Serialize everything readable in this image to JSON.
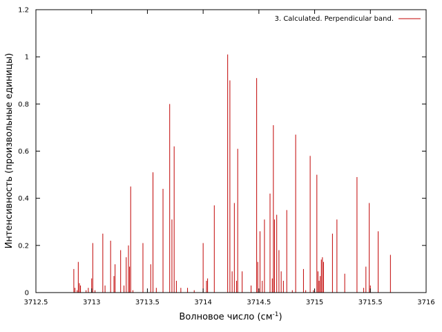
{
  "chart_data": {
    "type": "bar",
    "title": "",
    "xlabel": "Волновое число (см",
    "xlabel_sup": "-1",
    "xlabel_end": ")",
    "ylabel": "Интенсивность (произвольные единицы)",
    "xlim": [
      3712.5,
      3716
    ],
    "ylim": [
      0,
      1.2
    ],
    "x_ticks": [
      "3712.5",
      "3713",
      "3713.5",
      "3714",
      "3714.5",
      "3715",
      "3715.5",
      "3716"
    ],
    "y_ticks": [
      "0",
      "0.2",
      "0.4",
      "0.6",
      "0.8",
      "1",
      "1.2"
    ],
    "grid": false,
    "legend_position": "top-right",
    "color": "#c00000",
    "series": [
      {
        "name": "3. Calculated. Perpendicular band.",
        "points": [
          [
            3712.84,
            0.1
          ],
          [
            3712.85,
            0.02
          ],
          [
            3712.87,
            0.01
          ],
          [
            3712.88,
            0.13
          ],
          [
            3712.89,
            0.04
          ],
          [
            3712.9,
            0.03
          ],
          [
            3712.95,
            0.01
          ],
          [
            3712.97,
            0.02
          ],
          [
            3713.0,
            0.06
          ],
          [
            3713.01,
            0.21
          ],
          [
            3713.03,
            0.01
          ],
          [
            3713.1,
            0.25
          ],
          [
            3713.12,
            0.03
          ],
          [
            3713.17,
            0.22
          ],
          [
            3713.2,
            0.07
          ],
          [
            3713.21,
            0.12
          ],
          [
            3713.26,
            0.18
          ],
          [
            3713.29,
            0.03
          ],
          [
            3713.31,
            0.15
          ],
          [
            3713.33,
            0.2
          ],
          [
            3713.34,
            0.11
          ],
          [
            3713.35,
            0.45
          ],
          [
            3713.37,
            0.01
          ],
          [
            3713.46,
            0.21
          ],
          [
            3713.53,
            0.12
          ],
          [
            3713.55,
            0.51
          ],
          [
            3713.58,
            0.02
          ],
          [
            3713.64,
            0.44
          ],
          [
            3713.7,
            0.8
          ],
          [
            3713.72,
            0.31
          ],
          [
            3713.74,
            0.62
          ],
          [
            3713.76,
            0.05
          ],
          [
            3713.8,
            0.02
          ],
          [
            3713.86,
            0.02
          ],
          [
            3713.92,
            0.01
          ],
          [
            3714.0,
            0.21
          ],
          [
            3714.03,
            0.05
          ],
          [
            3714.04,
            0.06
          ],
          [
            3714.1,
            0.37
          ],
          [
            3714.22,
            1.01
          ],
          [
            3714.24,
            0.9
          ],
          [
            3714.26,
            0.09
          ],
          [
            3714.28,
            0.38
          ],
          [
            3714.3,
            0.05
          ],
          [
            3714.31,
            0.61
          ],
          [
            3714.35,
            0.09
          ],
          [
            3714.43,
            0.03
          ],
          [
            3714.48,
            0.91
          ],
          [
            3714.49,
            0.13
          ],
          [
            3714.51,
            0.26
          ],
          [
            3714.53,
            0.05
          ],
          [
            3714.55,
            0.31
          ],
          [
            3714.6,
            0.42
          ],
          [
            3714.62,
            0.06
          ],
          [
            3714.63,
            0.71
          ],
          [
            3714.64,
            0.31
          ],
          [
            3714.66,
            0.33
          ],
          [
            3714.68,
            0.18
          ],
          [
            3714.7,
            0.09
          ],
          [
            3714.72,
            0.05
          ],
          [
            3714.75,
            0.35
          ],
          [
            3714.8,
            0.01
          ],
          [
            3714.83,
            0.67
          ],
          [
            3714.9,
            0.1
          ],
          [
            3714.92,
            0.01
          ],
          [
            3714.96,
            0.58
          ],
          [
            3714.99,
            0.01
          ],
          [
            3715.02,
            0.5
          ],
          [
            3715.03,
            0.09
          ],
          [
            3715.04,
            0.05
          ],
          [
            3715.05,
            0.07
          ],
          [
            3715.06,
            0.14
          ],
          [
            3715.07,
            0.15
          ],
          [
            3715.08,
            0.13
          ],
          [
            3715.16,
            0.25
          ],
          [
            3715.2,
            0.31
          ],
          [
            3715.27,
            0.08
          ],
          [
            3715.38,
            0.49
          ],
          [
            3715.44,
            0.02
          ],
          [
            3715.46,
            0.11
          ],
          [
            3715.49,
            0.38
          ],
          [
            3715.5,
            0.03
          ],
          [
            3715.57,
            0.26
          ],
          [
            3715.68,
            0.16
          ]
        ]
      }
    ]
  }
}
